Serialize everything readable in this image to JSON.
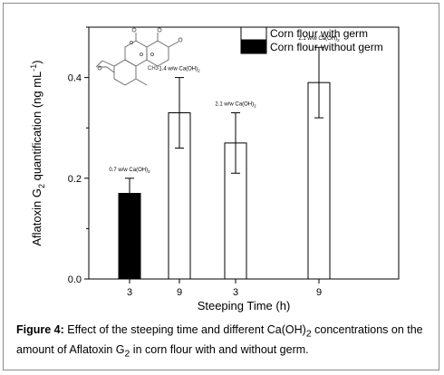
{
  "chart_data": {
    "type": "bar",
    "title": "",
    "xlabel": "Steeping Time (h)",
    "ylabel_main": "Aflatoxin G",
    "ylabel_sub": "2",
    "ylabel_rest": " quantification (ng mL",
    "ylabel_sup": "-1",
    "ylabel_end": ")",
    "ylim": [
      0.0,
      0.5
    ],
    "yticks": [
      "0.0",
      "0.2",
      "0.4"
    ],
    "yticks_values": [
      0.0,
      0.2,
      0.4
    ],
    "categories": [
      "3",
      "9",
      "3",
      "9"
    ],
    "values": [
      0.17,
      0.33,
      0.27,
      0.39
    ],
    "errors": [
      0.03,
      0.07,
      0.06,
      0.07
    ],
    "fills": [
      "black",
      "white",
      "white",
      "white"
    ],
    "bar_labels": [
      {
        "main": "0.7 w/w Ca(OH)",
        "sub": "2"
      },
      {
        "main": "1.4 w/w Ca(OH)",
        "sub": "2"
      },
      {
        "main": "2.1 w/w Ca(OH)",
        "sub": "2"
      },
      {
        "main": "2.1 w/w Ca(OH)",
        "sub": "2"
      }
    ],
    "legend": [
      {
        "label": "Corn flour with germ",
        "fill": "white"
      },
      {
        "label": "Corn flour without germ",
        "fill": "black"
      }
    ],
    "legend_position": "top-right",
    "grid": false
  },
  "structure_label": "CH3",
  "caption": {
    "label": "Figure 4:",
    "text1": " Effect of the steeping time and different Ca(OH)",
    "sub1": "2",
    "text2": " concentrations on the amount of Aflatoxin G",
    "sub2": "2",
    "text3": " in corn flour with and without germ."
  }
}
